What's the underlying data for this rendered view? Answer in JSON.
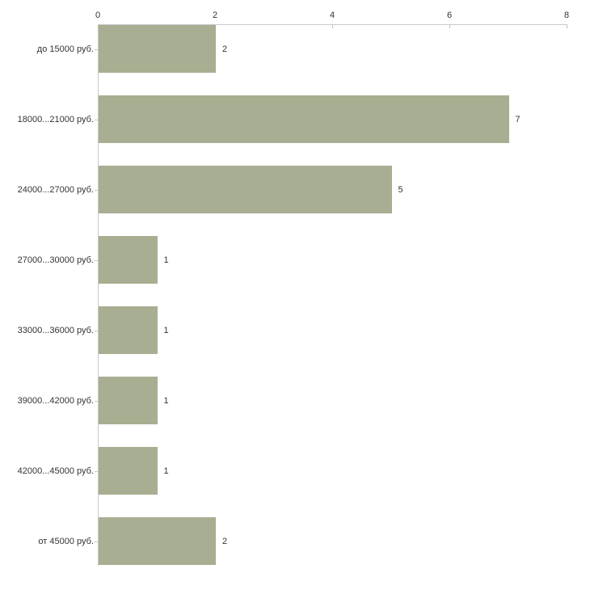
{
  "chart_data": {
    "type": "bar",
    "orientation": "horizontal",
    "title": "",
    "xlabel": "",
    "ylabel": "",
    "categories": [
      "до 15000 руб.",
      "18000...21000 руб.",
      "24000...27000 руб.",
      "27000...30000 руб.",
      "33000...36000 руб.",
      "39000...42000 руб.",
      "42000...45000 руб.",
      "от 45000 руб."
    ],
    "values": [
      2,
      7,
      5,
      1,
      1,
      1,
      1,
      2
    ],
    "value_labels": [
      "2",
      "7",
      "5",
      "1",
      "1",
      "1",
      "1",
      "2"
    ],
    "x_axis": {
      "position": "top",
      "min": 0,
      "max": 8,
      "ticks": [
        0,
        2,
        4,
        6,
        8
      ],
      "tick_labels": [
        "0",
        "2",
        "4",
        "6",
        "8"
      ]
    },
    "grid": false,
    "legend": "none",
    "colors": {
      "bar": "#A8AE91",
      "axis_line": "#C8C8C8",
      "x_tick": "#BFC3A0",
      "y_tick": "#CDC8BC",
      "text": "#333333",
      "background": "#FFFFFF"
    }
  }
}
